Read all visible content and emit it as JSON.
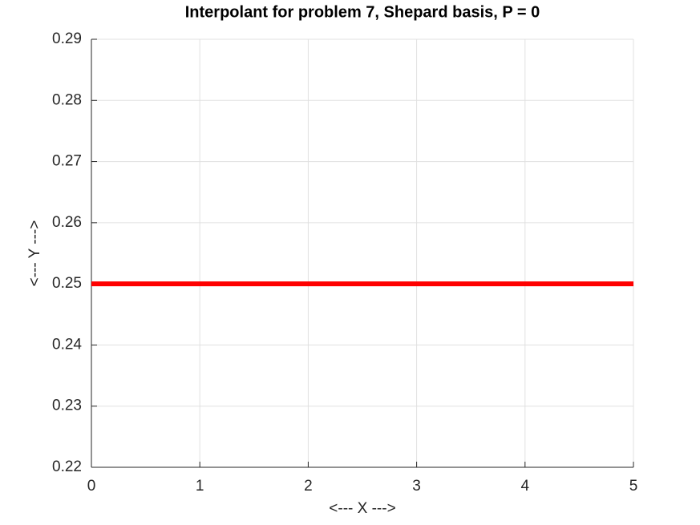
{
  "chart_data": {
    "type": "line",
    "title": "Interpolant for problem 7, Shepard basis, P = 0",
    "xlabel": "<--- X --->",
    "ylabel": "<--- Y --->",
    "x": [
      0,
      5
    ],
    "values": [
      0.25,
      0.25
    ],
    "color": "#ff0000",
    "xlim": [
      0,
      5
    ],
    "xticks": [
      0,
      1,
      2,
      3,
      4,
      5
    ],
    "ylim": [
      0.22,
      0.29
    ],
    "yticks": [
      0.22,
      0.23,
      0.24,
      0.25,
      0.26,
      0.27,
      0.28,
      0.29
    ],
    "grid": true
  }
}
